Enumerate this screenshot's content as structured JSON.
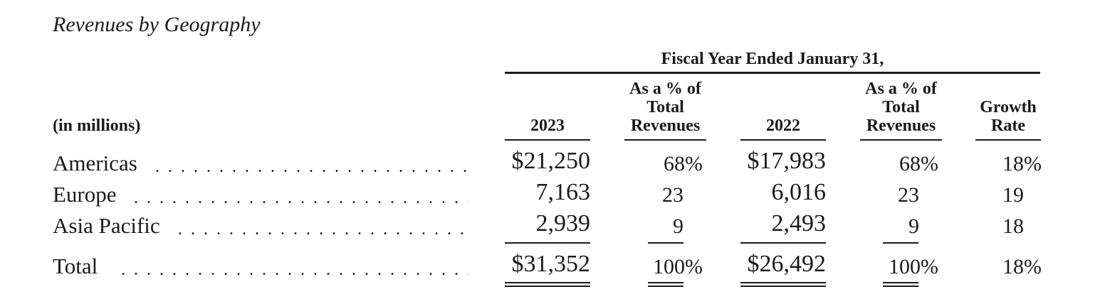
{
  "title": "Revenues by Geography",
  "table": {
    "group_header": "Fiscal Year Ended January 31,",
    "unit_label": "(in millions)",
    "columns": [
      {
        "lines": [
          "2023"
        ]
      },
      {
        "lines": [
          "As a % of",
          "Total",
          "Revenues"
        ]
      },
      {
        "lines": [
          "2022"
        ]
      },
      {
        "lines": [
          "As a % of",
          "Total",
          "Revenues"
        ]
      },
      {
        "lines": [
          "Growth",
          "Rate"
        ]
      }
    ],
    "rows": [
      {
        "label": "Americas",
        "v2023": "$21,250",
        "p2023": "68%",
        "v2022": "$17,983",
        "p2022": "68%",
        "growth": "18%"
      },
      {
        "label": "Europe",
        "v2023": "7,163",
        "p2023": "23",
        "v2022": "6,016",
        "p2022": "23",
        "growth": "19"
      },
      {
        "label": "Asia Pacific",
        "v2023": "2,939",
        "p2023": "9",
        "v2022": "2,493",
        "p2022": "9",
        "growth": "18"
      }
    ],
    "total": {
      "label": "Total",
      "v2023": "$31,352",
      "p2023": "100%",
      "v2022": "$26,492",
      "p2022": "100%",
      "growth": "18%"
    },
    "leader_dots": ". . . . . . . . . . . . . . . . . . . . . . . . . . . . . . . . . . ."
  }
}
